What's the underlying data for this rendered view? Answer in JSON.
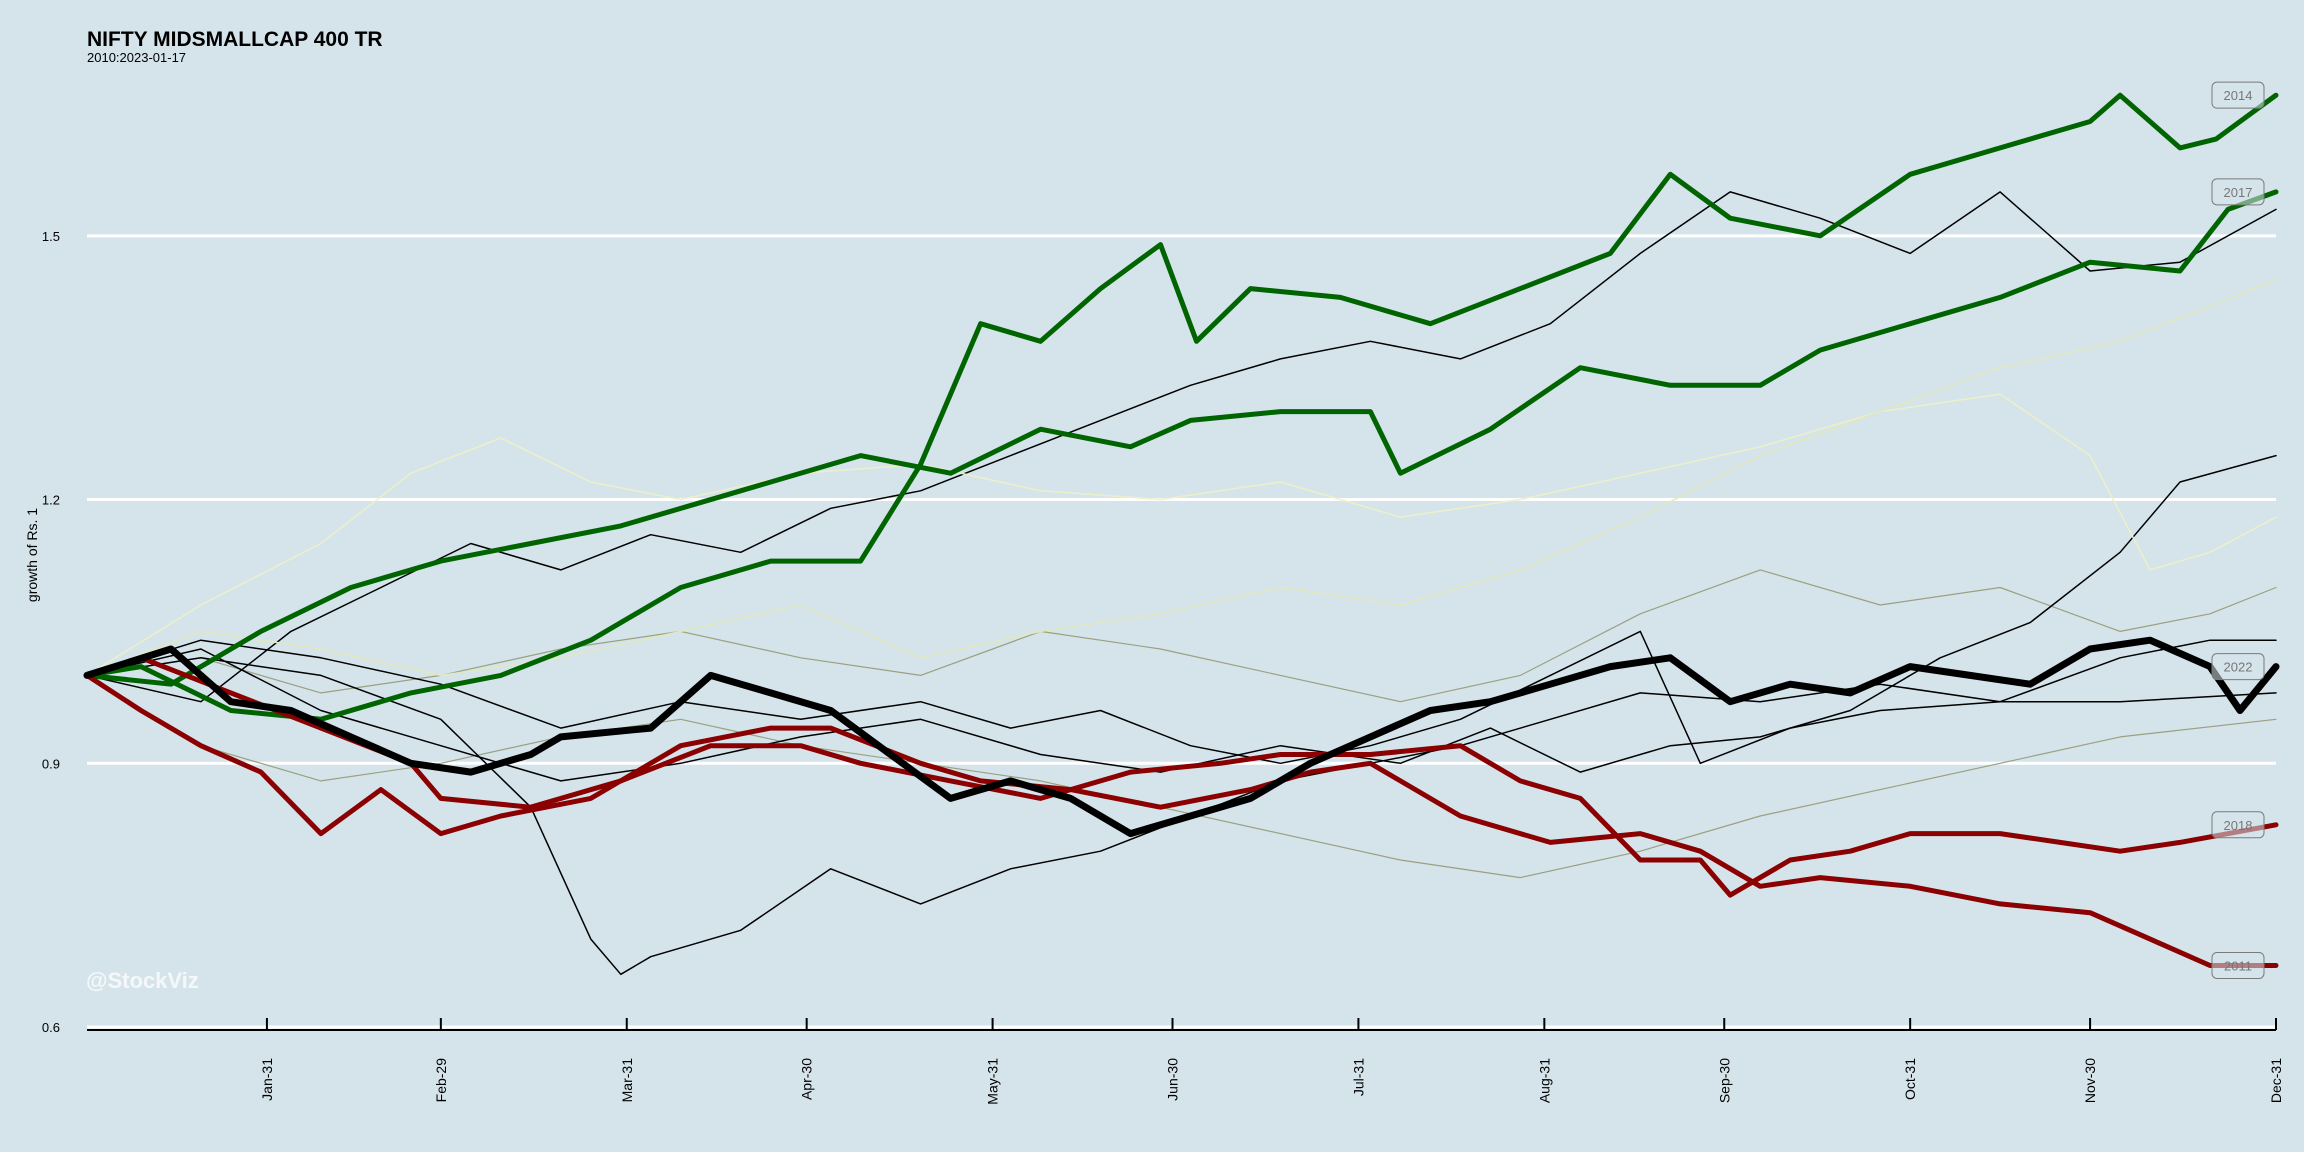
{
  "chart_data": {
    "type": "line",
    "title": "NIFTY MIDSMALLCAP 400 TR",
    "subtitle": "2010:2023-01-17",
    "xlabel": "",
    "ylabel": "growth of Rs. 1",
    "watermark": "@StockViz",
    "ylim": [
      0.6,
      1.7
    ],
    "y_ticks": [
      0.6,
      0.9,
      1.2,
      1.5
    ],
    "x_ticks": [
      "Jan-31",
      "Feb-29",
      "Mar-31",
      "Apr-30",
      "May-31",
      "Jun-30",
      "Jul-31",
      "Aug-31",
      "Sep-30",
      "Oct-31",
      "Nov-30",
      "Dec-31"
    ],
    "x_tick_days": [
      31,
      60,
      91,
      121,
      152,
      182,
      213,
      244,
      274,
      305,
      335,
      366
    ],
    "x_range_days": [
      1,
      366
    ],
    "grid": true,
    "legend": "labels at right end of highlighted series",
    "series": [
      {
        "name": "2014",
        "color": "#006400",
        "width": 5,
        "labeled": true,
        "x": [
          1,
          10,
          25,
          40,
          55,
          70,
          85,
          100,
          115,
          130,
          140,
          150,
          160,
          170,
          180,
          186,
          195,
          210,
          225,
          240,
          255,
          265,
          275,
          290,
          305,
          320,
          335,
          340,
          350,
          356,
          366
        ],
        "y": [
          1.0,
          1.01,
          0.96,
          0.95,
          0.98,
          1.0,
          1.04,
          1.1,
          1.13,
          1.13,
          1.24,
          1.4,
          1.38,
          1.44,
          1.49,
          1.38,
          1.44,
          1.43,
          1.4,
          1.44,
          1.48,
          1.57,
          1.52,
          1.5,
          1.57,
          1.6,
          1.63,
          1.66,
          1.6,
          1.61,
          1.66
        ]
      },
      {
        "name": "2017",
        "color": "#006400",
        "width": 5,
        "labeled": true,
        "x": [
          1,
          15,
          30,
          45,
          60,
          75,
          90,
          110,
          130,
          145,
          160,
          175,
          185,
          200,
          215,
          220,
          235,
          250,
          265,
          280,
          290,
          305,
          320,
          335,
          350,
          358,
          366
        ],
        "y": [
          1.0,
          0.99,
          1.05,
          1.1,
          1.13,
          1.15,
          1.17,
          1.21,
          1.25,
          1.23,
          1.28,
          1.26,
          1.29,
          1.3,
          1.3,
          1.23,
          1.28,
          1.35,
          1.33,
          1.33,
          1.37,
          1.4,
          1.43,
          1.47,
          1.46,
          1.53,
          1.55
        ]
      },
      {
        "name": "2022",
        "color": "#000000",
        "width": 7,
        "labeled": true,
        "x": [
          1,
          15,
          25,
          35,
          45,
          55,
          65,
          75,
          80,
          95,
          105,
          115,
          125,
          135,
          145,
          155,
          165,
          175,
          185,
          195,
          205,
          215,
          225,
          235,
          245,
          255,
          265,
          275,
          285,
          295,
          305,
          315,
          325,
          335,
          345,
          355,
          360,
          366
        ],
        "y": [
          1.0,
          1.03,
          0.97,
          0.96,
          0.93,
          0.9,
          0.89,
          0.91,
          0.93,
          0.94,
          1.0,
          0.98,
          0.96,
          0.91,
          0.86,
          0.88,
          0.86,
          0.82,
          0.84,
          0.86,
          0.9,
          0.93,
          0.96,
          0.97,
          0.99,
          1.01,
          1.02,
          0.97,
          0.99,
          0.98,
          1.01,
          1.0,
          0.99,
          1.03,
          1.04,
          1.01,
          0.96,
          1.01
        ]
      },
      {
        "name": "2018",
        "color": "#8b0000",
        "width": 5,
        "labeled": true,
        "x": [
          1,
          10,
          25,
          40,
          55,
          60,
          75,
          90,
          105,
          120,
          130,
          145,
          160,
          175,
          190,
          200,
          215,
          230,
          240,
          250,
          260,
          270,
          275,
          285,
          295,
          305,
          320,
          330,
          340,
          350,
          366
        ],
        "y": [
          1.0,
          1.02,
          0.98,
          0.94,
          0.9,
          0.86,
          0.85,
          0.88,
          0.92,
          0.92,
          0.9,
          0.88,
          0.86,
          0.89,
          0.9,
          0.91,
          0.91,
          0.92,
          0.88,
          0.86,
          0.79,
          0.79,
          0.75,
          0.79,
          0.8,
          0.82,
          0.82,
          0.81,
          0.8,
          0.81,
          0.83
        ]
      },
      {
        "name": "2011",
        "color": "#8b0000",
        "width": 5,
        "labeled": true,
        "x": [
          1,
          10,
          20,
          30,
          40,
          50,
          60,
          70,
          85,
          100,
          115,
          125,
          140,
          150,
          165,
          180,
          195,
          205,
          215,
          230,
          245,
          260,
          270,
          280,
          290,
          305,
          320,
          335,
          345,
          355,
          366
        ],
        "y": [
          1.0,
          0.96,
          0.92,
          0.89,
          0.82,
          0.87,
          0.82,
          0.84,
          0.86,
          0.92,
          0.94,
          0.94,
          0.9,
          0.88,
          0.87,
          0.85,
          0.87,
          0.89,
          0.9,
          0.84,
          0.81,
          0.82,
          0.8,
          0.76,
          0.77,
          0.76,
          0.74,
          0.73,
          0.7,
          0.67,
          0.67
        ]
      },
      {
        "name": "",
        "color": "#000000",
        "width": 1.5,
        "labeled": false,
        "x": [
          1,
          20,
          40,
          60,
          75,
          85,
          90,
          95,
          110,
          125,
          140,
          155,
          170,
          185,
          200,
          215,
          230,
          245,
          260,
          280,
          300,
          320,
          340,
          355,
          366
        ],
        "y": [
          1.0,
          1.02,
          1.0,
          0.95,
          0.85,
          0.7,
          0.66,
          0.68,
          0.71,
          0.78,
          0.74,
          0.78,
          0.8,
          0.84,
          0.88,
          0.9,
          0.92,
          0.95,
          0.98,
          0.97,
          0.99,
          0.97,
          1.02,
          1.04,
          1.04
        ]
      },
      {
        "name": "",
        "color": "#000000",
        "width": 1.5,
        "labeled": false,
        "x": [
          1,
          20,
          35,
          50,
          65,
          80,
          95,
          110,
          125,
          140,
          155,
          170,
          185,
          200,
          215,
          230,
          245,
          260,
          275,
          290,
          305,
          320,
          335,
          350,
          366
        ],
        "y": [
          1.0,
          0.97,
          1.05,
          1.1,
          1.15,
          1.12,
          1.16,
          1.14,
          1.19,
          1.21,
          1.25,
          1.29,
          1.33,
          1.36,
          1.38,
          1.36,
          1.4,
          1.48,
          1.55,
          1.52,
          1.48,
          1.55,
          1.46,
          1.47,
          1.53
        ]
      },
      {
        "name": "",
        "color": "#000000",
        "width": 1.5,
        "labeled": false,
        "x": [
          1,
          20,
          40,
          60,
          80,
          100,
          120,
          140,
          160,
          180,
          200,
          220,
          235,
          250,
          265,
          280,
          295,
          310,
          325,
          340,
          350,
          366
        ],
        "y": [
          1.0,
          1.03,
          0.96,
          0.92,
          0.88,
          0.9,
          0.93,
          0.95,
          0.91,
          0.89,
          0.92,
          0.9,
          0.94,
          0.89,
          0.92,
          0.93,
          0.96,
          1.02,
          1.06,
          1.14,
          1.22,
          1.25
        ]
      },
      {
        "name": "",
        "color": "#000000",
        "width": 1.5,
        "labeled": false,
        "x": [
          1,
          20,
          40,
          60,
          80,
          100,
          120,
          140,
          155,
          170,
          185,
          200,
          215,
          230,
          245,
          260,
          270,
          285,
          300,
          320,
          340,
          366
        ],
        "y": [
          1.0,
          1.04,
          1.02,
          0.99,
          0.94,
          0.97,
          0.95,
          0.97,
          0.94,
          0.96,
          0.92,
          0.9,
          0.92,
          0.95,
          1.0,
          1.05,
          0.9,
          0.94,
          0.96,
          0.97,
          0.97,
          0.98
        ]
      },
      {
        "name": "",
        "color": "#ecf0c8",
        "width": 1.5,
        "labeled": false,
        "x": [
          1,
          20,
          40,
          55,
          70,
          85,
          100,
          120,
          140,
          160,
          180,
          200,
          220,
          240,
          260,
          280,
          300,
          320,
          335,
          345,
          355,
          366
        ],
        "y": [
          1.0,
          1.08,
          1.15,
          1.23,
          1.27,
          1.22,
          1.2,
          1.23,
          1.24,
          1.21,
          1.2,
          1.22,
          1.18,
          1.2,
          1.23,
          1.26,
          1.3,
          1.32,
          1.25,
          1.12,
          1.14,
          1.18
        ]
      },
      {
        "name": "",
        "color": "#e2e8be",
        "width": 1.5,
        "labeled": false,
        "x": [
          1,
          20,
          40,
          60,
          80,
          100,
          120,
          140,
          160,
          180,
          200,
          220,
          240,
          260,
          280,
          300,
          320,
          340,
          355,
          366
        ],
        "y": [
          1.0,
          1.05,
          1.03,
          1.0,
          1.02,
          1.05,
          1.08,
          1.02,
          1.05,
          1.07,
          1.1,
          1.08,
          1.12,
          1.18,
          1.25,
          1.3,
          1.35,
          1.38,
          1.42,
          1.45
        ]
      },
      {
        "name": "",
        "color": "#9aa080",
        "width": 1.2,
        "labeled": false,
        "x": [
          1,
          20,
          40,
          60,
          80,
          100,
          120,
          140,
          160,
          180,
          200,
          220,
          240,
          260,
          280,
          300,
          320,
          340,
          355,
          366
        ],
        "y": [
          1.0,
          1.02,
          0.98,
          1.0,
          1.03,
          1.05,
          1.02,
          1.0,
          1.05,
          1.03,
          1.0,
          0.97,
          1.0,
          1.07,
          1.12,
          1.08,
          1.1,
          1.05,
          1.07,
          1.1
        ]
      },
      {
        "name": "",
        "color": "#9aa080",
        "width": 1.2,
        "labeled": false,
        "x": [
          1,
          20,
          40,
          60,
          80,
          100,
          120,
          140,
          160,
          180,
          200,
          220,
          240,
          260,
          280,
          300,
          320,
          340,
          366
        ],
        "y": [
          1.0,
          0.92,
          0.88,
          0.9,
          0.93,
          0.95,
          0.92,
          0.9,
          0.88,
          0.85,
          0.82,
          0.79,
          0.77,
          0.8,
          0.84,
          0.87,
          0.9,
          0.93,
          0.95
        ]
      }
    ]
  }
}
